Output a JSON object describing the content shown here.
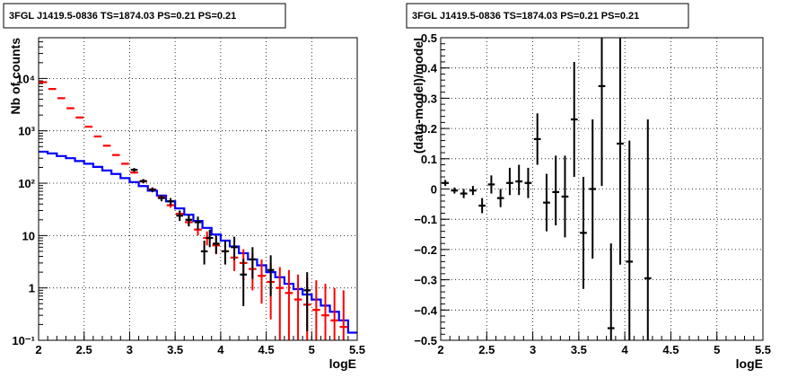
{
  "chart_data": [
    {
      "type": "line",
      "title": "3FGL J1419.5-0836 TS=1874.03 PS=0.21 PS=0.21",
      "xlabel": "logE",
      "ylabel": "Nb of counts",
      "xlim": [
        2,
        5.5
      ],
      "ylim": [
        0.1,
        60000
      ],
      "ylog": true,
      "grid": true,
      "x_ticks": [
        "2",
        "2.5",
        "3",
        "3.5",
        "4",
        "4.5",
        "5",
        "5.5"
      ],
      "y_ticks": [
        "10⁻¹",
        "1",
        "10",
        "10²",
        "10³",
        "10⁴"
      ],
      "y_tick_values": [
        0.1,
        1,
        10,
        100,
        1000,
        10000
      ],
      "series": [
        {
          "color": "#0000ff",
          "style": "step",
          "edges": [
            2.0,
            2.1,
            2.2,
            2.3,
            2.4,
            2.5,
            2.6,
            2.7,
            2.8,
            2.9,
            3.0,
            3.1,
            3.2,
            3.3,
            3.4,
            3.5,
            3.6,
            3.7,
            3.8,
            3.9,
            4.0,
            4.1,
            4.2,
            4.3,
            4.4,
            4.5,
            4.6,
            4.7,
            4.8,
            4.9,
            5.0,
            5.1,
            5.2,
            5.3,
            5.4,
            5.5
          ],
          "values": [
            400,
            370,
            330,
            300,
            265,
            235,
            205,
            175,
            150,
            125,
            105,
            88,
            72,
            58,
            45,
            33,
            25,
            19,
            14,
            10.5,
            8,
            6.2,
            4.6,
            3.5,
            2.7,
            2.0,
            1.6,
            1.2,
            0.95,
            0.75,
            0.6,
            0.46,
            0.35,
            0.24,
            0.14
          ]
        },
        {
          "color": "#ff0000",
          "style": "errorbar",
          "points": [
            {
              "x": 2.05,
              "y": 8500,
              "lo": 8300,
              "hi": 8700
            },
            {
              "x": 2.15,
              "y": 6300,
              "lo": 6200,
              "hi": 6400
            },
            {
              "x": 2.25,
              "y": 4200,
              "lo": 4100,
              "hi": 4300
            },
            {
              "x": 2.35,
              "y": 2700,
              "lo": 2650,
              "hi": 2750
            },
            {
              "x": 2.45,
              "y": 1800,
              "lo": 1750,
              "hi": 1850
            },
            {
              "x": 2.55,
              "y": 1200,
              "lo": 1170,
              "hi": 1230
            },
            {
              "x": 2.65,
              "y": 780,
              "lo": 760,
              "hi": 800
            },
            {
              "x": 2.75,
              "y": 520,
              "lo": 505,
              "hi": 535
            },
            {
              "x": 2.85,
              "y": 345,
              "lo": 335,
              "hi": 355
            },
            {
              "x": 2.95,
              "y": 235,
              "lo": 225,
              "hi": 245
            },
            {
              "x": 3.05,
              "y": 160,
              "lo": 152,
              "hi": 168
            },
            {
              "x": 3.15,
              "y": 108,
              "lo": 101,
              "hi": 115
            },
            {
              "x": 3.25,
              "y": 76,
              "lo": 70,
              "hi": 82
            },
            {
              "x": 3.35,
              "y": 54,
              "lo": 49,
              "hi": 59
            },
            {
              "x": 3.45,
              "y": 38,
              "lo": 34,
              "hi": 42
            },
            {
              "x": 3.55,
              "y": 26,
              "lo": 22,
              "hi": 30
            },
            {
              "x": 3.65,
              "y": 18,
              "lo": 15,
              "hi": 22
            },
            {
              "x": 3.75,
              "y": 13,
              "lo": 10,
              "hi": 17
            },
            {
              "x": 3.85,
              "y": 9,
              "lo": 6.5,
              "hi": 12
            },
            {
              "x": 3.95,
              "y": 6.5,
              "lo": 4.4,
              "hi": 9
            },
            {
              "x": 4.05,
              "y": 5,
              "lo": 3,
              "hi": 7.5
            },
            {
              "x": 4.15,
              "y": 3.8,
              "lo": 2.1,
              "hi": 6
            },
            {
              "x": 4.25,
              "y": 3.0,
              "lo": 1.4,
              "hi": 5.5
            },
            {
              "x": 4.35,
              "y": 2.3,
              "lo": 0.9,
              "hi": 4.5
            },
            {
              "x": 4.45,
              "y": 1.7,
              "lo": 0.5,
              "hi": 3.5
            },
            {
              "x": 4.55,
              "y": 1.3,
              "lo": 0.25,
              "hi": 3
            },
            {
              "x": 4.65,
              "y": 1.0,
              "lo": 0.1,
              "hi": 2.5
            },
            {
              "x": 4.75,
              "y": 0.8,
              "lo": 0.1,
              "hi": 2.2
            },
            {
              "x": 4.85,
              "y": 0.6,
              "lo": 0.1,
              "hi": 1.8
            },
            {
              "x": 4.95,
              "y": 0.48,
              "lo": 0.1,
              "hi": 1.6
            },
            {
              "x": 5.05,
              "y": 0.38,
              "lo": 0.1,
              "hi": 1.4
            },
            {
              "x": 5.15,
              "y": 0.3,
              "lo": 0.1,
              "hi": 1.2
            },
            {
              "x": 5.25,
              "y": 0.24,
              "lo": 0.1,
              "hi": 1.0
            },
            {
              "x": 5.35,
              "y": 0.18,
              "lo": 0.1,
              "hi": 0.9
            }
          ]
        },
        {
          "color": "#000000",
          "style": "errorbar",
          "points": [
            {
              "x": 3.05,
              "y": 180,
              "lo": 165,
              "hi": 195
            },
            {
              "x": 3.15,
              "y": 110,
              "lo": 100,
              "hi": 120
            },
            {
              "x": 3.25,
              "y": 75,
              "lo": 67,
              "hi": 83
            },
            {
              "x": 3.35,
              "y": 52,
              "lo": 45,
              "hi": 60
            },
            {
              "x": 3.45,
              "y": 45,
              "lo": 38,
              "hi": 52
            },
            {
              "x": 3.55,
              "y": 24,
              "lo": 19,
              "hi": 30
            },
            {
              "x": 3.65,
              "y": 20,
              "lo": 15,
              "hi": 25
            },
            {
              "x": 3.75,
              "y": 18,
              "lo": 13,
              "hi": 23
            },
            {
              "x": 3.82,
              "y": 5,
              "lo": 2.8,
              "hi": 8
            },
            {
              "x": 3.88,
              "y": 9,
              "lo": 6,
              "hi": 13
            },
            {
              "x": 3.95,
              "y": 7,
              "lo": 4.5,
              "hi": 10
            },
            {
              "x": 4.05,
              "y": 5,
              "lo": 2.8,
              "hi": 8
            },
            {
              "x": 4.15,
              "y": 6,
              "lo": 3.4,
              "hi": 9.5
            },
            {
              "x": 4.25,
              "y": 1.8,
              "lo": 0.45,
              "hi": 3.6
            },
            {
              "x": 4.35,
              "y": 3.5,
              "lo": 1.5,
              "hi": 6
            },
            {
              "x": 4.55,
              "y": 2.2,
              "lo": 0.7,
              "hi": 4.2
            },
            {
              "x": 4.95,
              "y": 0.9,
              "lo": 0.15,
              "hi": 2
            }
          ]
        }
      ]
    },
    {
      "type": "scatter",
      "title": "3FGL J1419.5-0836 TS=1874.03 PS=0.21 PS=0.21",
      "xlabel": "logE",
      "ylabel": "(data-model)/model",
      "xlim": [
        2,
        5.5
      ],
      "ylim": [
        -0.5,
        0.5
      ],
      "grid": true,
      "x_ticks": [
        "2",
        "2.5",
        "3",
        "3.5",
        "4",
        "4.5",
        "5",
        "5.5"
      ],
      "y_ticks": [
        "−0.5",
        "−0.4",
        "−0.3",
        "−0.2",
        "−0.1",
        "0",
        "0.1",
        "0.2",
        "0.3",
        "0.4",
        "0.5"
      ],
      "y_tick_values": [
        -0.5,
        -0.4,
        -0.3,
        -0.2,
        -0.1,
        0,
        0.1,
        0.2,
        0.3,
        0.4,
        0.5
      ],
      "series": [
        {
          "color": "#000000",
          "style": "errorbar",
          "points": [
            {
              "x": 2.05,
              "y": 0.02,
              "lo": 0.01,
              "hi": 0.03
            },
            {
              "x": 2.15,
              "y": -0.005,
              "lo": -0.015,
              "hi": 0.005
            },
            {
              "x": 2.25,
              "y": -0.015,
              "lo": -0.03,
              "hi": 0.0
            },
            {
              "x": 2.35,
              "y": -0.005,
              "lo": -0.02,
              "hi": 0.01
            },
            {
              "x": 2.45,
              "y": -0.055,
              "lo": -0.08,
              "hi": -0.03
            },
            {
              "x": 2.55,
              "y": 0.015,
              "lo": -0.015,
              "hi": 0.045
            },
            {
              "x": 2.65,
              "y": -0.03,
              "lo": -0.06,
              "hi": 0.0
            },
            {
              "x": 2.75,
              "y": 0.02,
              "lo": -0.02,
              "hi": 0.07
            },
            {
              "x": 2.85,
              "y": 0.025,
              "lo": -0.02,
              "hi": 0.08
            },
            {
              "x": 2.95,
              "y": 0.02,
              "lo": -0.03,
              "hi": 0.07
            },
            {
              "x": 3.05,
              "y": 0.165,
              "lo": 0.08,
              "hi": 0.25
            },
            {
              "x": 3.15,
              "y": -0.045,
              "lo": -0.14,
              "hi": 0.05
            },
            {
              "x": 3.25,
              "y": -0.01,
              "lo": -0.12,
              "hi": 0.11
            },
            {
              "x": 3.35,
              "y": -0.025,
              "lo": -0.16,
              "hi": 0.11
            },
            {
              "x": 3.45,
              "y": 0.23,
              "lo": 0.04,
              "hi": 0.42
            },
            {
              "x": 3.55,
              "y": -0.145,
              "lo": -0.33,
              "hi": 0.04
            },
            {
              "x": 3.65,
              "y": 0.0,
              "lo": -0.23,
              "hi": 0.23
            },
            {
              "x": 3.75,
              "y": 0.34,
              "lo": 0.01,
              "hi": 0.67
            },
            {
              "x": 3.85,
              "y": -0.46,
              "lo": -0.5,
              "hi": -0.18
            },
            {
              "x": 3.95,
              "y": 0.15,
              "lo": -0.25,
              "hi": 0.55
            },
            {
              "x": 4.05,
              "y": -0.24,
              "lo": -0.5,
              "hi": 0.16
            },
            {
              "x": 4.25,
              "y": -0.295,
              "lo": -0.5,
              "hi": 0.23
            }
          ]
        }
      ]
    }
  ]
}
